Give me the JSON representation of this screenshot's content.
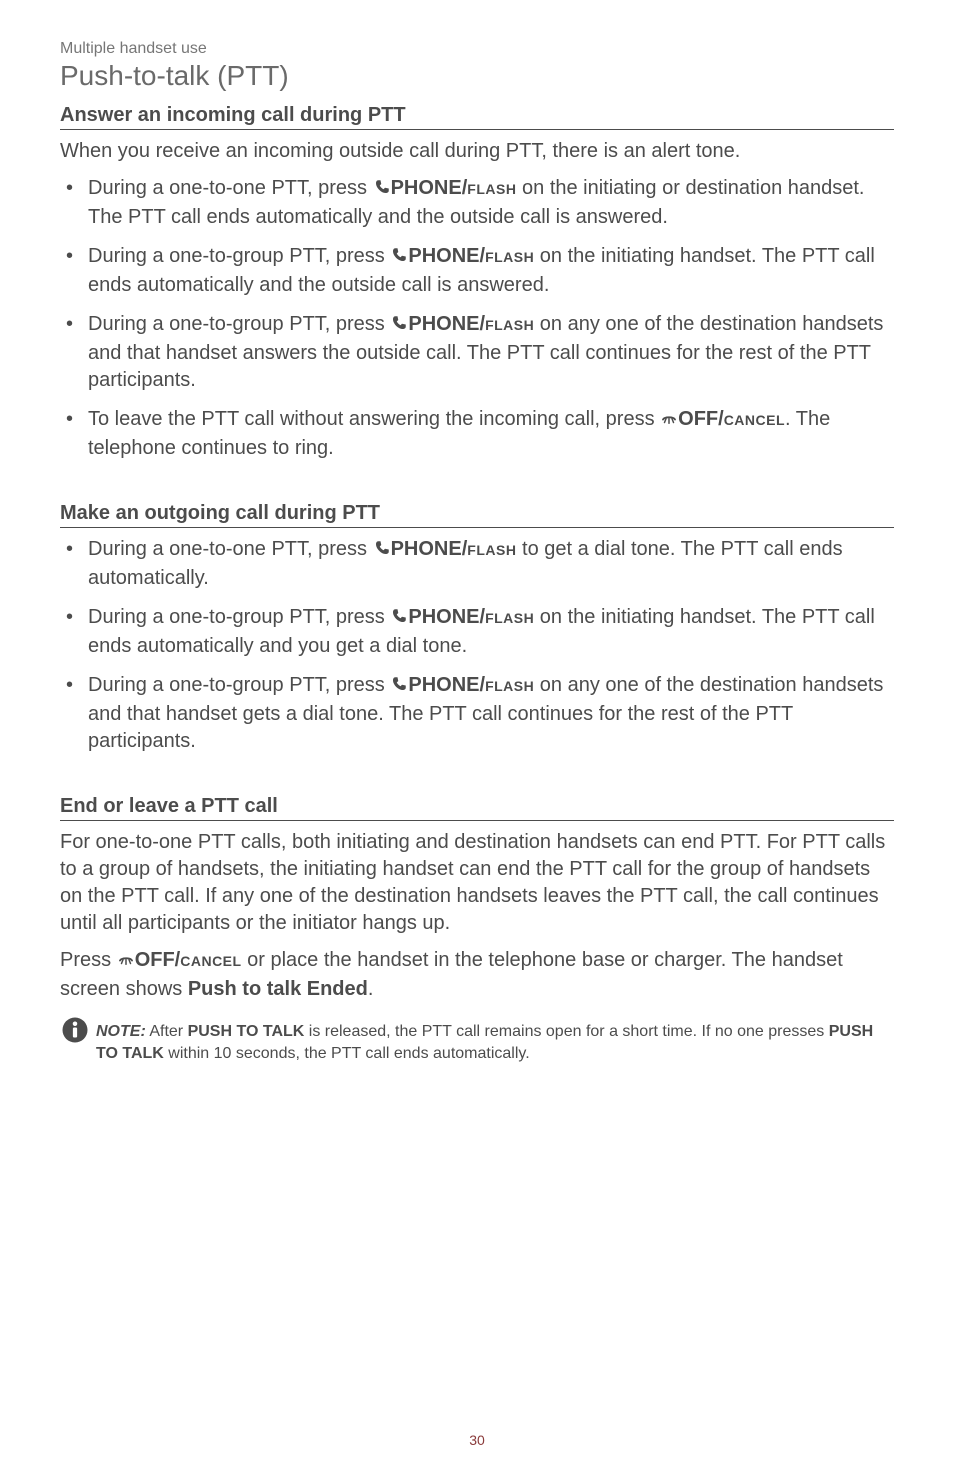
{
  "overline": "Multiple handset use",
  "title": "Push-to-talk (PTT)",
  "section1": {
    "heading": "Answer an incoming call during PTT",
    "intro": "When you receive an incoming outside call during PTT, there is an alert tone.",
    "bullets": [
      {
        "pre": "During a one-to-one PTT, press ",
        "btn_bold": "PHONE/",
        "btn_sc": "flash",
        "post": " on the initiating or destination handset. The PTT call ends automatically and the outside call is answered.",
        "icon": "phone"
      },
      {
        "pre": "During a one-to-group PTT, press ",
        "btn_bold": "PHONE/",
        "btn_sc": "flash",
        "post": " on the initiating handset. The PTT call ends automatically and the outside call is answered.",
        "icon": "phone"
      },
      {
        "pre": "During a one-to-group PTT, press ",
        "btn_bold": "PHONE/",
        "btn_sc": "flash",
        "post": " on any one of the destination handsets and that handset answers the outside call. The PTT call continues for the rest of the PTT participants.",
        "icon": "phone"
      },
      {
        "pre": "To leave the PTT call without answering the incoming call, press ",
        "btn_bold": "OFF/",
        "btn_sc": "cancel",
        "post": ". The telephone continues to ring.",
        "icon": "off"
      }
    ]
  },
  "section2": {
    "heading": "Make an outgoing call during PTT",
    "bullets": [
      {
        "pre": "During a one-to-one PTT, press ",
        "btn_bold": "PHONE/",
        "btn_sc": "flash",
        "post": " to get a dial tone. The PTT call ends automatically.",
        "icon": "phone"
      },
      {
        "pre": "During a one-to-group PTT, press ",
        "btn_bold": "PHONE/",
        "btn_sc": "flash",
        "post": " on the initiating handset. The PTT call ends automatically and you get a dial tone.",
        "icon": "phone"
      },
      {
        "pre": "During a one-to-group PTT, press ",
        "btn_bold": "PHONE/",
        "btn_sc": "flash",
        "post": " on any one of the destination handsets and that handset gets a dial tone. The PTT call continues for the rest of the PTT participants.",
        "icon": "phone"
      }
    ]
  },
  "section3": {
    "heading": "End or leave a PTT call",
    "para1": "For one-to-one PTT calls, both initiating and destination handsets can end PTT. For PTT calls to a group of handsets, the initiating handset can end the PTT call for the group of handsets on the PTT call. If any one of the destination handsets leaves the PTT call, the call continues until all participants or the initiator hangs up.",
    "press_pre": "Press ",
    "press_btn_bold": "OFF/",
    "press_btn_sc": "cancel",
    "press_mid": " or place the handset in the telephone base or charger. The handset screen shows ",
    "press_bold_end": "Push to talk Ended",
    "press_post": "."
  },
  "note": {
    "label": "NOTE:",
    "t1": " After ",
    "b1": "PUSH TO TALK",
    "t2": " is released, the PTT call remains open for a short time. If no one presses ",
    "b2": "PUSH TO TALK",
    "t3": " within 10 seconds, the PTT call ends automatically."
  },
  "page_number": "30",
  "colors": {
    "text": "#4c4c4c",
    "subtext": "#767676",
    "rule": "#4c4c4c",
    "pagenum": "#8a3a3a",
    "bg": "#ffffff"
  }
}
